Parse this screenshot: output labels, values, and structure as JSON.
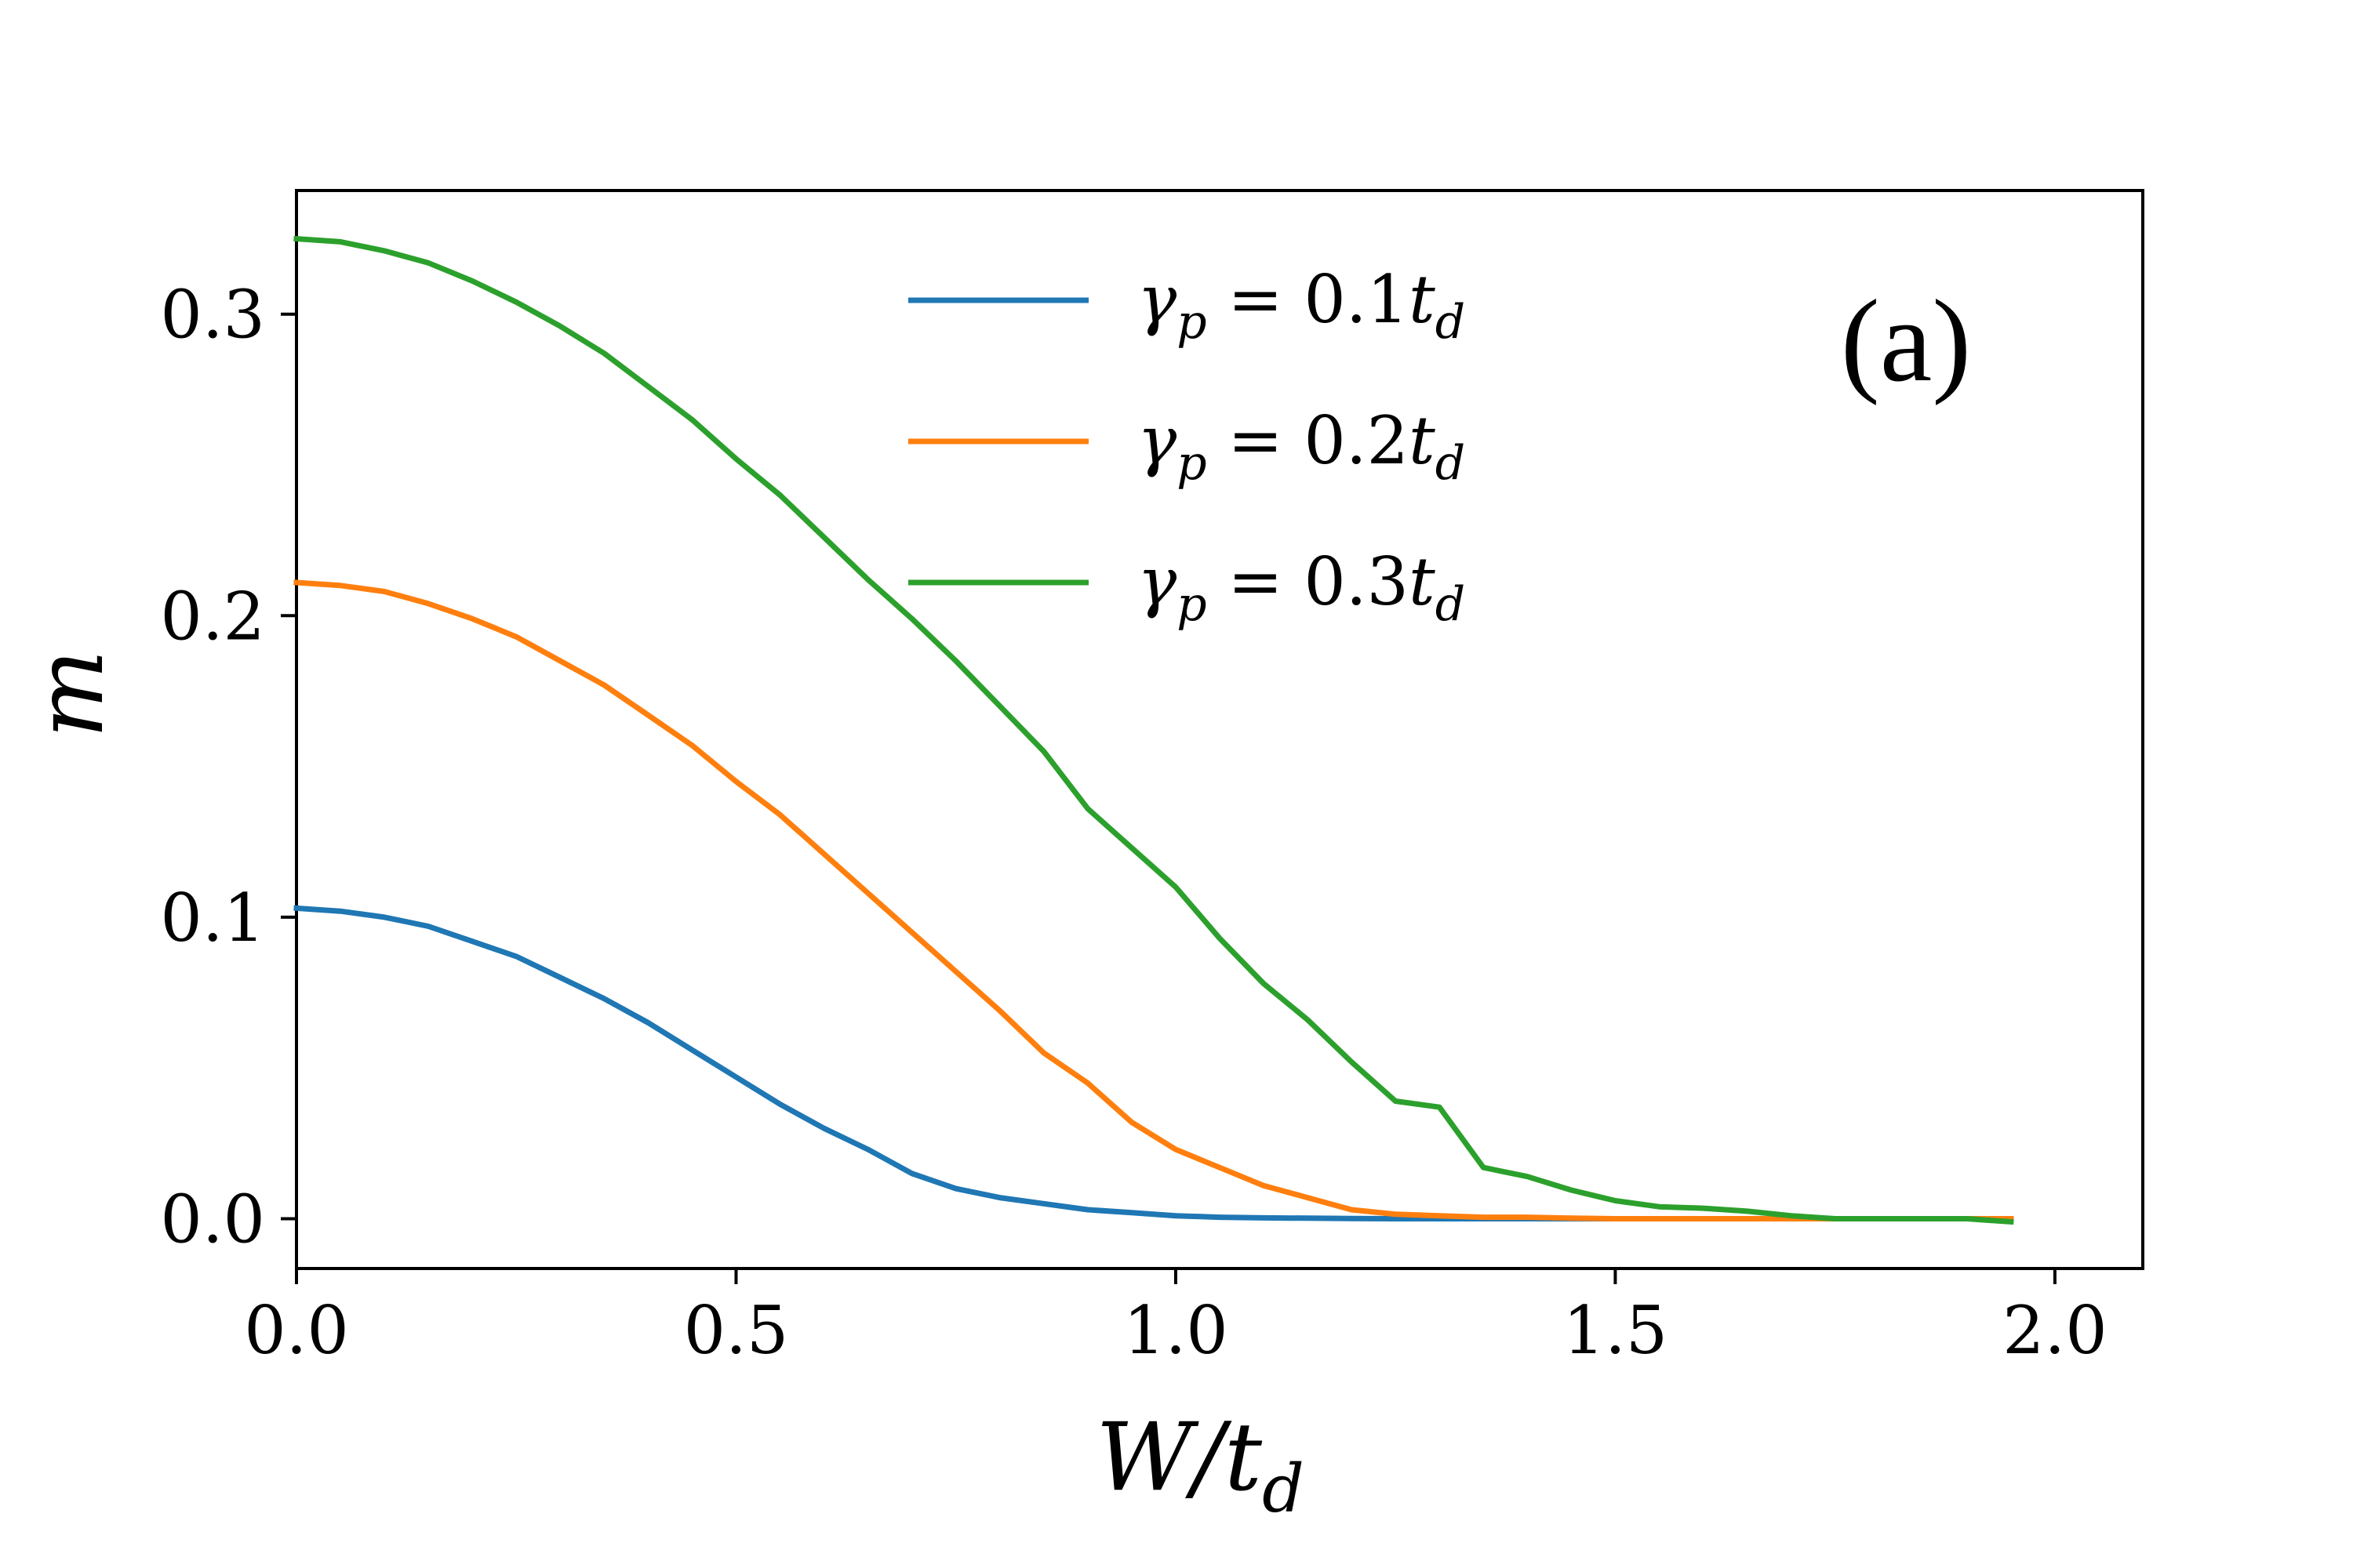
{
  "chart_data": {
    "type": "line",
    "panel_label": "(a)",
    "xlabel": {
      "main": "W/t",
      "sub": "d"
    },
    "ylabel": "m",
    "xlim": [
      0.0,
      2.1
    ],
    "ylim": [
      -0.0165,
      0.341
    ],
    "x_ticks": [
      0.0,
      0.5,
      1.0,
      1.5,
      2.0
    ],
    "x_tick_labels": [
      "0.0",
      "0.5",
      "1.0",
      "1.5",
      "2.0"
    ],
    "y_ticks": [
      0.0,
      0.1,
      0.2,
      0.3
    ],
    "y_tick_labels": [
      "0.0",
      "0.1",
      "0.2",
      "0.3"
    ],
    "grid": false,
    "legend_position": "top-center",
    "x": [
      0.0,
      0.05,
      0.1,
      0.15,
      0.2,
      0.25,
      0.3,
      0.35,
      0.4,
      0.45,
      0.5,
      0.55,
      0.6,
      0.65,
      0.7,
      0.75,
      0.8,
      0.85,
      0.9,
      0.95,
      1.0,
      1.05,
      1.1,
      1.15,
      1.2,
      1.25,
      1.3,
      1.35,
      1.4,
      1.45,
      1.5,
      1.55,
      1.6,
      1.65,
      1.7,
      1.75,
      1.8,
      1.85,
      1.9,
      1.95
    ],
    "series": [
      {
        "name": "γp = 0.1td",
        "legend": {
          "gamma": "γ",
          "gamma_sub": "p",
          "eq": " = 0.1",
          "t": "t",
          "t_sub": "d"
        },
        "color": "#1f77b4",
        "values": [
          0.103,
          0.102,
          0.1,
          0.097,
          0.092,
          0.087,
          0.08,
          0.073,
          0.065,
          0.056,
          0.047,
          0.038,
          0.03,
          0.023,
          0.015,
          0.01,
          0.007,
          0.005,
          0.003,
          0.002,
          0.001,
          0.0005,
          0.0003,
          0.0002,
          0.0001,
          0.0,
          0.0,
          0.0,
          0.0,
          0.0,
          0.0,
          0.0,
          0.0,
          0.0,
          0.0,
          0.0,
          0.0,
          0.0,
          0.0,
          0.0
        ]
      },
      {
        "name": "γp = 0.2td",
        "legend": {
          "gamma": "γ",
          "gamma_sub": "p",
          "eq": " = 0.2",
          "t": "t",
          "t_sub": "d"
        },
        "color": "#ff7f0e",
        "values": [
          0.211,
          0.21,
          0.208,
          0.204,
          0.199,
          0.193,
          0.185,
          0.177,
          0.167,
          0.157,
          0.145,
          0.134,
          0.121,
          0.108,
          0.095,
          0.082,
          0.069,
          0.055,
          0.045,
          0.032,
          0.023,
          0.017,
          0.011,
          0.007,
          0.003,
          0.0015,
          0.001,
          0.0005,
          0.0005,
          0.0002,
          0.0,
          0.0,
          0.0,
          0.0,
          0.0,
          0.0,
          0.0,
          0.0,
          0.0,
          0.0
        ]
      },
      {
        "name": "γp = 0.3td",
        "legend": {
          "gamma": "γ",
          "gamma_sub": "p",
          "eq": " = 0.3",
          "t": "t",
          "t_sub": "d"
        },
        "color": "#2ca02c",
        "values": [
          0.325,
          0.324,
          0.321,
          0.317,
          0.311,
          0.304,
          0.296,
          0.287,
          0.276,
          0.265,
          0.252,
          0.24,
          0.226,
          0.212,
          0.199,
          0.185,
          0.17,
          0.155,
          0.136,
          0.123,
          0.11,
          0.093,
          0.078,
          0.066,
          0.052,
          0.039,
          0.037,
          0.017,
          0.014,
          0.0095,
          0.006,
          0.004,
          0.0035,
          0.0025,
          0.001,
          0.0,
          0.0,
          0.0,
          0.0,
          -0.001
        ]
      }
    ]
  }
}
